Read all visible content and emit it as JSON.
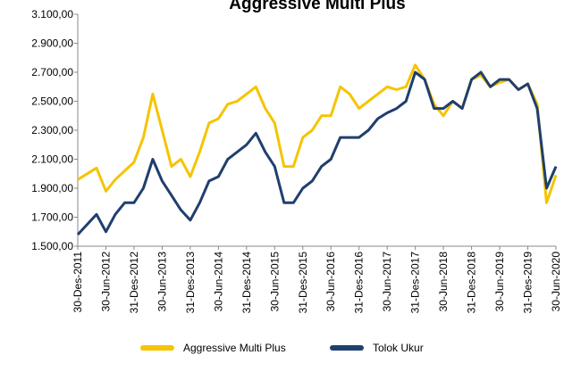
{
  "chart_data": {
    "type": "line",
    "title": "Aggressive Multi Plus",
    "categories": [
      "30-Des-2011",
      null,
      null,
      "30-Jun-2012",
      null,
      null,
      "31-Des-2012",
      null,
      null,
      "30-Jun-2013",
      null,
      null,
      "31-Des-2013",
      null,
      null,
      "30-Jun-2014",
      null,
      null,
      "31-Des-2014",
      null,
      null,
      "30-Jun-2015",
      null,
      null,
      "31-Des-2015",
      null,
      null,
      "30-Jun-2016",
      null,
      null,
      "31-Des-2016",
      null,
      null,
      "30-Jun-2017",
      null,
      null,
      "31-Des-2017",
      null,
      null,
      "30-Jun-2018",
      null,
      null,
      "31-Des-2018",
      null,
      null,
      "30-Jun-2019",
      null,
      null,
      "31-Des-2019",
      null,
      null,
      "30-Jun-2020"
    ],
    "series": [
      {
        "name": "Aggressive Multi Plus",
        "color": "#f5c400",
        "values": [
          1960,
          2000,
          2040,
          1880,
          1960,
          2020,
          2080,
          2250,
          2550,
          2300,
          2050,
          2100,
          1980,
          2150,
          2350,
          2380,
          2480,
          2500,
          2550,
          2600,
          2450,
          2350,
          2050,
          2050,
          2250,
          2300,
          2400,
          2400,
          2600,
          2550,
          2450,
          2500,
          2550,
          2600,
          2580,
          2600,
          2750,
          2650,
          2480,
          2400,
          2500,
          2450,
          2650,
          2680,
          2600,
          2630,
          2650,
          2580,
          2620,
          2480,
          1800,
          1990
        ]
      },
      {
        "name": "Tolok Ukur",
        "color": "#1f3f6e",
        "values": [
          1580,
          1650,
          1720,
          1600,
          1720,
          1800,
          1800,
          1900,
          2100,
          1950,
          1850,
          1750,
          1680,
          1800,
          1950,
          1980,
          2100,
          2150,
          2200,
          2280,
          2150,
          2050,
          1800,
          1800,
          1900,
          1950,
          2050,
          2100,
          2250,
          2250,
          2250,
          2300,
          2380,
          2420,
          2450,
          2500,
          2700,
          2650,
          2450,
          2450,
          2500,
          2450,
          2650,
          2700,
          2600,
          2650,
          2650,
          2580,
          2620,
          2450,
          1900,
          2050
        ]
      }
    ],
    "ylim": [
      1500,
      3100
    ],
    "yticks": [
      {
        "value": 1500,
        "label": "1.500,00"
      },
      {
        "value": 1700,
        "label": "1.700,00"
      },
      {
        "value": 1900,
        "label": "1.900,00"
      },
      {
        "value": 2100,
        "label": "2.100,00"
      },
      {
        "value": 2300,
        "label": "2.300,00"
      },
      {
        "value": 2500,
        "label": "2.500,00"
      },
      {
        "value": 2700,
        "label": "2.700,00"
      },
      {
        "value": 2900,
        "label": "2.900,00"
      },
      {
        "value": 3100,
        "label": "3.100,00"
      }
    ],
    "grid": false,
    "legend": "bottom"
  }
}
